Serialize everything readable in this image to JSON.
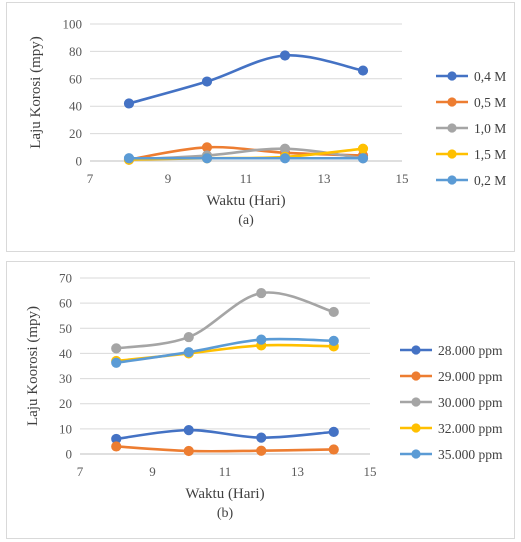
{
  "chart_data": [
    {
      "type": "line",
      "caption": "(a)",
      "xlabel": "Waktu (Hari)",
      "ylabel": "Laju Korosi (mpy)",
      "xlim": [
        7,
        15
      ],
      "ylim": [
        0,
        100
      ],
      "xticks": [
        "7",
        "9",
        "11",
        "13",
        "15"
      ],
      "yticks": [
        "0",
        "20",
        "40",
        "60",
        "80",
        "100"
      ],
      "x": [
        8,
        10,
        12,
        14
      ],
      "grid": true,
      "legend_position": "right",
      "series": [
        {
          "name": "0,4 M",
          "color": "#4472C4",
          "values": [
            42,
            58,
            77,
            66
          ]
        },
        {
          "name": "0,5 M",
          "color": "#ED7D31",
          "values": [
            1,
            10,
            6,
            4
          ]
        },
        {
          "name": "1,0 M",
          "color": "#A5A5A5",
          "values": [
            1,
            4,
            9,
            2
          ]
        },
        {
          "name": "1,5 M",
          "color": "#FFC000",
          "values": [
            1,
            2,
            3,
            9
          ]
        },
        {
          "name": "0,2 M",
          "color": "#5B9BD5",
          "values": [
            2,
            2,
            2,
            2
          ]
        }
      ]
    },
    {
      "type": "line",
      "caption": "(b)",
      "xlabel": "Waktu (Hari)",
      "ylabel": "Laju Koorosi (mpy)",
      "xlim": [
        7,
        15
      ],
      "ylim": [
        0,
        70
      ],
      "xticks": [
        "7",
        "9",
        "11",
        "13",
        "15"
      ],
      "yticks": [
        "0",
        "10",
        "20",
        "30",
        "40",
        "50",
        "60",
        "70"
      ],
      "x": [
        8,
        10,
        12,
        14
      ],
      "grid": true,
      "legend_position": "right",
      "series": [
        {
          "name": "28.000 ppm",
          "color": "#4472C4",
          "values": [
            6,
            9.5,
            6.5,
            8.8
          ]
        },
        {
          "name": "29.000 ppm",
          "color": "#ED7D31",
          "values": [
            3,
            1.2,
            1.3,
            1.8
          ]
        },
        {
          "name": "30.000 ppm",
          "color": "#A5A5A5",
          "values": [
            42,
            46.5,
            64,
            56.5
          ]
        },
        {
          "name": "32.000 ppm",
          "color": "#FFC000",
          "values": [
            37,
            40,
            43.2,
            42.8
          ]
        },
        {
          "name": "35.000 ppm",
          "color": "#5B9BD5",
          "values": [
            36.3,
            40.5,
            45.5,
            45
          ]
        }
      ]
    }
  ]
}
